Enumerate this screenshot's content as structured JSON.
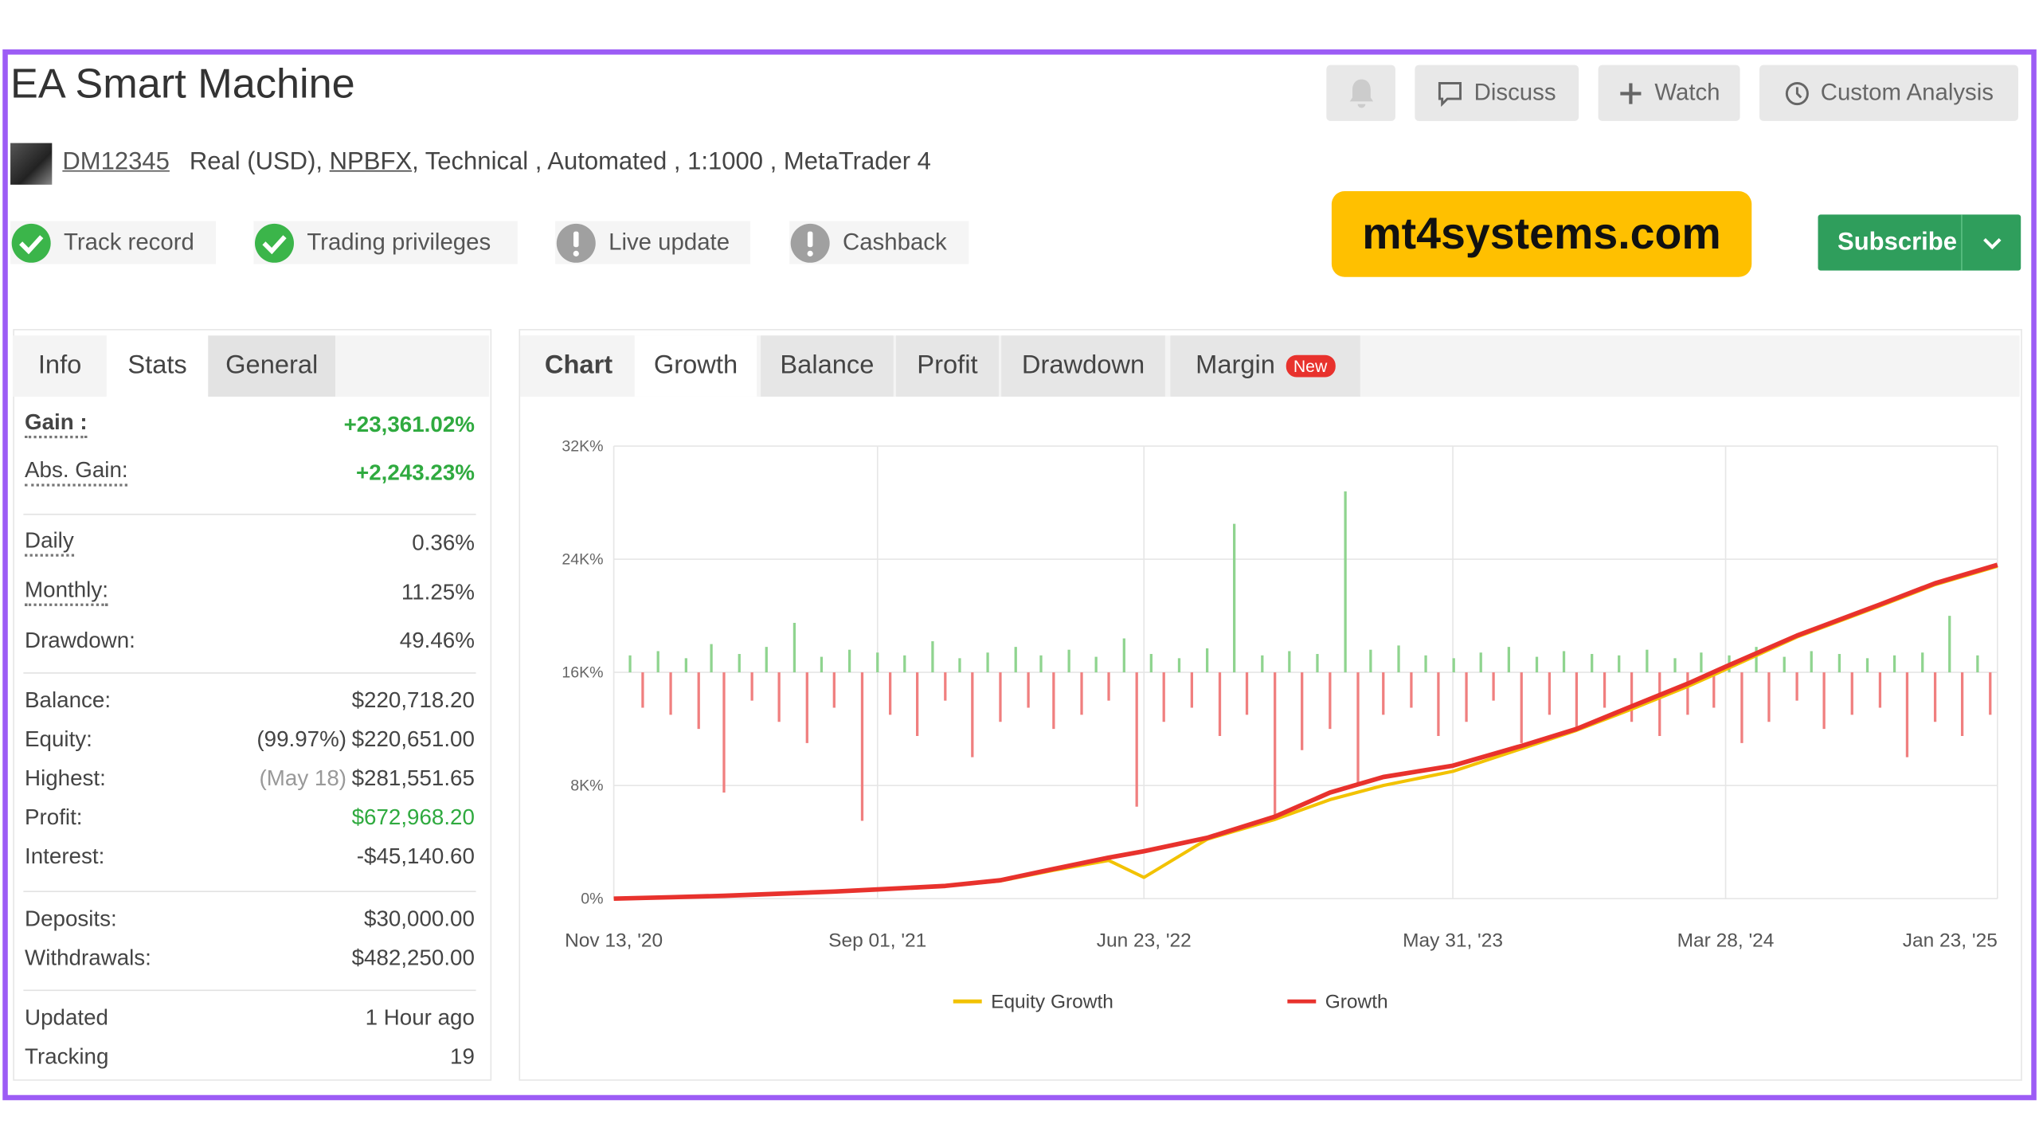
{
  "header": {
    "title": "EA Smart Machine",
    "account": "DM12345",
    "details_1": "Real (USD),",
    "broker": "NPBFX",
    "details_2": ", Technical , Automated , 1:1000 , MetaTrader 4"
  },
  "actions": [
    "Discuss",
    "Watch",
    "Custom Analysis"
  ],
  "badges": [
    {
      "label": "Track record",
      "ok": true
    },
    {
      "label": "Trading privileges",
      "ok": true
    },
    {
      "label": "Live update",
      "ok": false
    },
    {
      "label": "Cashback",
      "ok": false
    }
  ],
  "promo": "mt4systems.com",
  "subscribe": "Subscribe",
  "left_tabs": [
    "Info",
    "Stats",
    "General"
  ],
  "stats": [
    [
      {
        "label": "Gain :",
        "value": "+23,361.02%",
        "green": true,
        "dotted": true
      },
      {
        "label": "Abs. Gain:",
        "value": "+2,243.23%",
        "green": true,
        "dotted": true
      }
    ],
    [
      {
        "label": "Daily",
        "value": "0.36%",
        "dotted": true
      },
      {
        "label": "Monthly:",
        "value": "11.25%",
        "dotted": true
      },
      {
        "label": "Drawdown:",
        "value": "49.46%"
      }
    ],
    [
      {
        "label": "Balance:",
        "value": "$220,718.20"
      },
      {
        "label": "Equity:",
        "note": "(99.97%)",
        "value": "$220,651.00"
      },
      {
        "label": "Highest:",
        "note": "(May 18)",
        "value": "$281,551.65"
      },
      {
        "label": "Profit:",
        "value": "$672,968.20",
        "green": true
      },
      {
        "label": "Interest:",
        "value": "-$45,140.60"
      }
    ],
    [
      {
        "label": "Deposits:",
        "value": "$30,000.00"
      },
      {
        "label": "Withdrawals:",
        "value": "$482,250.00"
      }
    ],
    [
      {
        "label": "Updated",
        "value": "1 Hour ago"
      },
      {
        "label": "Tracking",
        "value": "19"
      }
    ]
  ],
  "chart_tabs": [
    "Chart",
    "Growth",
    "Balance",
    "Profit",
    "Drawdown",
    "Margin"
  ],
  "new_badge": "New",
  "chart_data": {
    "type": "line",
    "xlim": [
      "2020-11-13",
      "2025-01-23"
    ],
    "xticks": [
      {
        "value": "2020-11-13",
        "label": "Nov 13, '20"
      },
      {
        "value": "2021-09-01",
        "label": "Sep 01, '21"
      },
      {
        "value": "2022-06-23",
        "label": "Jun 23, '22"
      },
      {
        "value": "2023-05-31",
        "label": "May 31, '23"
      },
      {
        "value": "2024-03-28",
        "label": "Mar 28, '24"
      },
      {
        "value": "2025-01-23",
        "label": "Jan 23, '25"
      }
    ],
    "ylim": [
      0,
      32000
    ],
    "yticks": [
      {
        "value": 0,
        "label": "0%"
      },
      {
        "value": 8000,
        "label": "8K%"
      },
      {
        "value": 16000,
        "label": "16K%"
      },
      {
        "value": 24000,
        "label": "24K%"
      },
      {
        "value": 32000,
        "label": "32K%"
      }
    ],
    "y2lim": [
      -16,
      16
    ],
    "grid": true,
    "series": [
      {
        "name": "Equity Growth",
        "color": "#f2c200",
        "x": [
          "2020-11-13",
          "2021-01-15",
          "2021-03-15",
          "2021-05-15",
          "2021-07-15",
          "2021-09-01",
          "2021-11-15",
          "2022-01-15",
          "2022-03-15",
          "2022-05-15",
          "2022-06-23",
          "2022-09-01",
          "2022-11-15",
          "2023-01-15",
          "2023-03-15",
          "2023-05-31",
          "2023-08-15",
          "2023-10-15",
          "2023-12-15",
          "2024-02-15",
          "2024-03-28",
          "2024-06-15",
          "2024-09-15",
          "2024-11-15",
          "2025-01-23"
        ],
        "values": [
          0,
          100,
          200,
          350,
          500,
          650,
          900,
          1250,
          2000,
          2700,
          1500,
          4200,
          5600,
          7000,
          8000,
          9000,
          10600,
          11900,
          13400,
          15000,
          16200,
          18500,
          20700,
          22200,
          23500
        ]
      },
      {
        "name": "Growth",
        "color": "#e8322d",
        "x": [
          "2020-11-13",
          "2021-01-15",
          "2021-03-15",
          "2021-05-15",
          "2021-07-15",
          "2021-09-01",
          "2021-11-15",
          "2022-01-15",
          "2022-03-15",
          "2022-05-15",
          "2022-06-23",
          "2022-09-01",
          "2022-11-15",
          "2023-01-15",
          "2023-03-15",
          "2023-05-31",
          "2023-08-15",
          "2023-10-15",
          "2023-12-15",
          "2024-02-15",
          "2024-03-28",
          "2024-06-15",
          "2024-09-15",
          "2024-11-15",
          "2025-01-23"
        ],
        "values": [
          0,
          100,
          200,
          350,
          500,
          650,
          900,
          1300,
          2100,
          2900,
          3350,
          4300,
          5800,
          7500,
          8600,
          9400,
          10800,
          12000,
          13600,
          15200,
          16400,
          18600,
          20800,
          22300,
          23600
        ]
      }
    ],
    "bars": [
      {
        "axis": "y2",
        "color": "#8fd48f",
        "x": [
          "2020-12-01",
          "2021-01-01",
          "2021-02-01",
          "2021-03-01",
          "2021-04-01",
          "2021-05-01",
          "2021-06-01",
          "2021-07-01",
          "2021-08-01",
          "2021-09-01",
          "2021-10-01",
          "2021-11-01",
          "2021-12-01",
          "2022-01-01",
          "2022-02-01",
          "2022-03-01",
          "2022-04-01",
          "2022-05-01",
          "2022-06-01",
          "2022-07-01",
          "2022-08-01",
          "2022-09-01",
          "2022-10-01",
          "2022-11-01",
          "2022-12-01",
          "2023-01-01",
          "2023-02-01",
          "2023-03-01",
          "2023-04-01",
          "2023-05-01",
          "2023-06-01",
          "2023-07-01",
          "2023-08-01",
          "2023-09-01",
          "2023-10-01",
          "2023-11-01",
          "2023-12-01",
          "2024-01-01",
          "2024-02-01",
          "2024-03-01",
          "2024-04-01",
          "2024-05-01",
          "2024-06-01",
          "2024-07-01",
          "2024-08-01",
          "2024-09-01",
          "2024-10-01",
          "2024-11-01",
          "2024-12-01",
          "2025-01-01"
        ],
        "values": [
          1.2,
          1.5,
          1.0,
          2.0,
          1.3,
          1.8,
          3.5,
          1.1,
          1.6,
          1.4,
          1.2,
          2.2,
          1.0,
          1.4,
          1.8,
          1.2,
          1.6,
          1.1,
          2.4,
          1.3,
          1.0,
          1.7,
          10.5,
          1.2,
          1.5,
          1.3,
          12.8,
          1.6,
          1.9,
          1.2,
          1.0,
          1.4,
          1.8,
          1.1,
          1.5,
          1.3,
          1.2,
          1.6,
          1.0,
          1.4,
          1.2,
          1.8,
          1.1,
          1.5,
          1.3,
          1.0,
          1.2,
          1.4,
          4.0,
          1.2
        ]
      },
      {
        "axis": "y2",
        "color": "#f07f7f",
        "x": [
          "2020-12-15",
          "2021-01-15",
          "2021-02-15",
          "2021-03-15",
          "2021-04-15",
          "2021-05-15",
          "2021-06-15",
          "2021-07-15",
          "2021-08-15",
          "2021-09-15",
          "2021-10-15",
          "2021-11-15",
          "2021-12-15",
          "2022-01-15",
          "2022-02-15",
          "2022-03-15",
          "2022-04-15",
          "2022-05-15",
          "2022-06-15",
          "2022-07-15",
          "2022-08-15",
          "2022-09-15",
          "2022-10-15",
          "2022-11-15",
          "2022-12-15",
          "2023-01-15",
          "2023-02-15",
          "2023-03-15",
          "2023-04-15",
          "2023-05-15",
          "2023-06-15",
          "2023-07-15",
          "2023-08-15",
          "2023-09-15",
          "2023-10-15",
          "2023-11-15",
          "2023-12-15",
          "2024-01-15",
          "2024-02-15",
          "2024-03-15",
          "2024-04-15",
          "2024-05-15",
          "2024-06-15",
          "2024-07-15",
          "2024-08-15",
          "2024-09-15",
          "2024-10-15",
          "2024-11-15",
          "2024-12-15",
          "2025-01-15"
        ],
        "values": [
          -2.5,
          -3.0,
          -4.0,
          -8.5,
          -2.0,
          -3.5,
          -5.0,
          -2.5,
          -10.5,
          -3.0,
          -4.5,
          -2.0,
          -6.0,
          -3.5,
          -2.5,
          -4.0,
          -3.0,
          -2.0,
          -9.5,
          -3.5,
          -2.5,
          -4.5,
          -3.0,
          -10.5,
          -5.5,
          -4.0,
          -8.0,
          -3.0,
          -2.5,
          -4.5,
          -3.5,
          -2.0,
          -5.0,
          -3.0,
          -4.0,
          -2.5,
          -3.5,
          -4.5,
          -3.0,
          -2.5,
          -5.0,
          -3.5,
          -2.0,
          -4.0,
          -3.0,
          -2.5,
          -6.0,
          -3.5,
          -4.5,
          -3.0
        ]
      }
    ]
  }
}
